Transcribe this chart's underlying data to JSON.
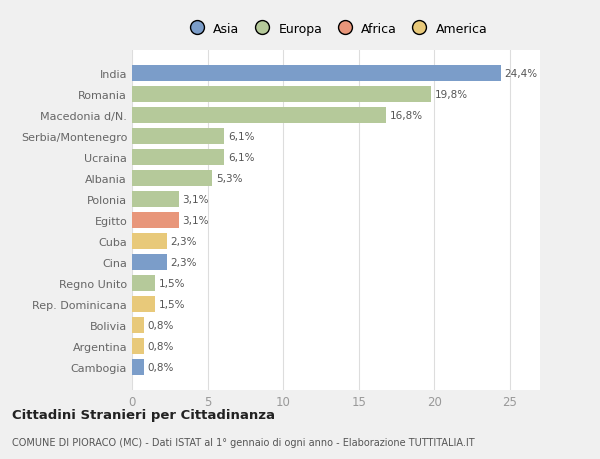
{
  "countries": [
    "India",
    "Romania",
    "Macedonia d/N.",
    "Serbia/Montenegro",
    "Ucraina",
    "Albania",
    "Polonia",
    "Egitto",
    "Cuba",
    "Cina",
    "Regno Unito",
    "Rep. Dominicana",
    "Bolivia",
    "Argentina",
    "Cambogia"
  ],
  "values": [
    24.4,
    19.8,
    16.8,
    6.1,
    6.1,
    5.3,
    3.1,
    3.1,
    2.3,
    2.3,
    1.5,
    1.5,
    0.8,
    0.8,
    0.8
  ],
  "labels": [
    "24,4%",
    "19,8%",
    "16,8%",
    "6,1%",
    "6,1%",
    "5,3%",
    "3,1%",
    "3,1%",
    "2,3%",
    "2,3%",
    "1,5%",
    "1,5%",
    "0,8%",
    "0,8%",
    "0,8%"
  ],
  "colors": [
    "#7b9dc9",
    "#b5c99a",
    "#b5c99a",
    "#b5c99a",
    "#b5c99a",
    "#b5c99a",
    "#b5c99a",
    "#e8967a",
    "#e8c97a",
    "#7b9dc9",
    "#b5c99a",
    "#e8c97a",
    "#e8c97a",
    "#e8c97a",
    "#7b9dc9"
  ],
  "legend_labels": [
    "Asia",
    "Europa",
    "Africa",
    "America"
  ],
  "legend_colors": [
    "#7b9dc9",
    "#b5c99a",
    "#e8967a",
    "#e8c97a"
  ],
  "title": "Cittadini Stranieri per Cittadinanza",
  "subtitle": "COMUNE DI PIORACO (MC) - Dati ISTAT al 1° gennaio di ogni anno - Elaborazione TUTTITALIA.IT",
  "xlim": [
    0,
    27
  ],
  "xticks": [
    0,
    5,
    10,
    15,
    20,
    25
  ],
  "background_color": "#f0f0f0",
  "plot_bg": "#ffffff",
  "grid_color": "#dddddd",
  "label_color": "#555555",
  "ytick_color": "#666666"
}
